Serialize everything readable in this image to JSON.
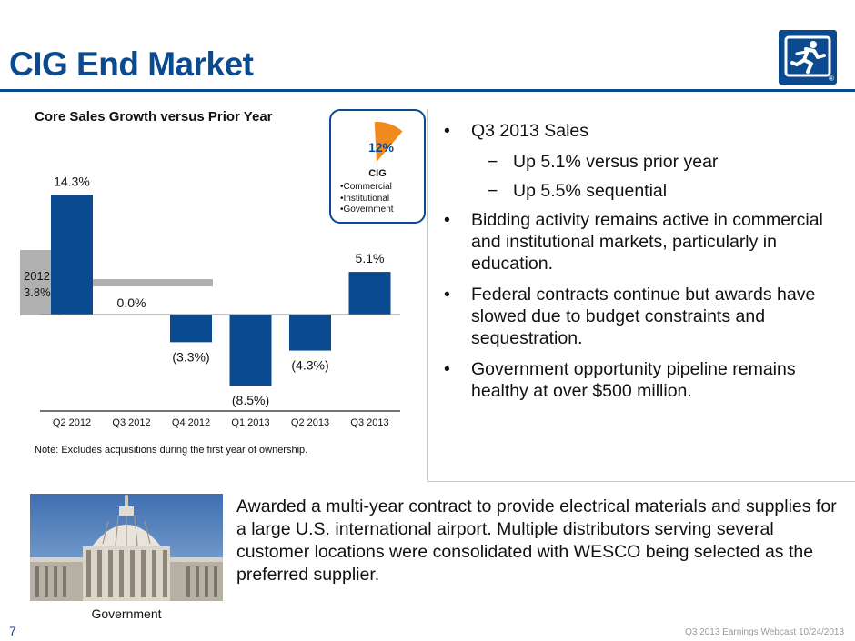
{
  "slide": {
    "title": "CIG End Market",
    "page_number": "7",
    "footer": "Q3 2013 Earnings Webcast 10/24/2013"
  },
  "colors": {
    "brand": "#0b4a8f",
    "bar": "#0a4a91",
    "pie_slice": "#f08a1c",
    "ref_band": "#b0b0b0"
  },
  "chart_data": {
    "type": "bar",
    "title": "Core Sales Growth versus Prior Year",
    "categories": [
      "Q2 2012",
      "Q3 2012",
      "Q4 2012",
      "Q1 2013",
      "Q2 2013",
      "Q3 2013"
    ],
    "values": [
      14.3,
      0.0,
      -3.3,
      -8.5,
      -4.3,
      5.1
    ],
    "data_labels": [
      "14.3%",
      "0.0%",
      "(3.3%)",
      "(8.5%)",
      "(4.3%)",
      "5.1%"
    ],
    "reference": {
      "label_year": "2012",
      "label_value": "3.8%",
      "value": 3.8
    },
    "ylim": [
      -9,
      15
    ],
    "note": "Note:  Excludes acquisitions during the first year of ownership."
  },
  "cig_box": {
    "percent": "12%",
    "share": 0.12,
    "name": "CIG",
    "items": [
      "Commercial",
      "Institutional",
      "Government"
    ],
    "bullet": "•"
  },
  "bullets": [
    {
      "level": 1,
      "marker": "•",
      "text": "Q3 2013 Sales"
    },
    {
      "level": 2,
      "marker": "−",
      "text": "Up 5.1% versus prior year"
    },
    {
      "level": 2,
      "marker": "−",
      "text": "Up 5.5% sequential"
    },
    {
      "level": 1,
      "marker": "•",
      "text": "Bidding activity remains active in commercial and institutional markets, particularly in education."
    },
    {
      "level": 1,
      "marker": "•",
      "text": "Federal contracts continue but awards have slowed due to budget constraints and sequestration."
    },
    {
      "level": 1,
      "marker": "•",
      "text": "Government opportunity pipeline remains healthy at over $500 million."
    }
  ],
  "photo": {
    "caption": "Government"
  },
  "award_text": "Awarded a multi-year contract to provide electrical materials and supplies for a large U.S. international airport.  Multiple distributors serving several customer locations were consolidated with WESCO being selected as the preferred supplier."
}
